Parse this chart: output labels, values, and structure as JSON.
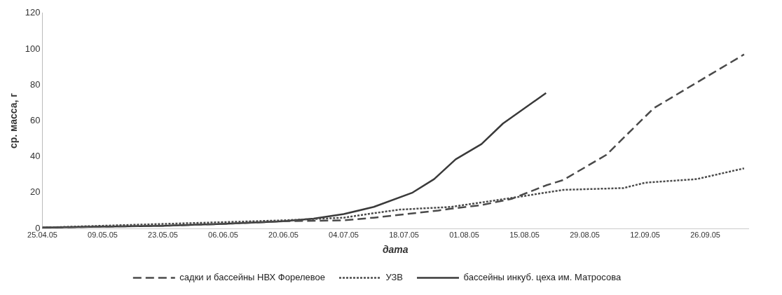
{
  "chart_data": {
    "type": "line",
    "xlabel": "дата",
    "ylabel": "ср. масса, г",
    "ylim": [
      0,
      120
    ],
    "yticks": [
      0,
      20,
      40,
      60,
      80,
      100,
      120
    ],
    "xlim": [
      "--04-25",
      "--10-06"
    ],
    "xticks": [
      {
        "value": "--04-25",
        "label": "25.04.05"
      },
      {
        "value": "--05-09",
        "label": "09.05.05"
      },
      {
        "value": "--05-23",
        "label": "23.05.05"
      },
      {
        "value": "--06-06",
        "label": "06.06.05"
      },
      {
        "value": "--06-20",
        "label": "20.06.05"
      },
      {
        "value": "--07-04",
        "label": "04.07.05"
      },
      {
        "value": "--07-18",
        "label": "18.07.05"
      },
      {
        "value": "--08-01",
        "label": "01.08.05"
      },
      {
        "value": "--08-15",
        "label": "15.08.05"
      },
      {
        "value": "--08-29",
        "label": "29.08.05"
      },
      {
        "value": "--09-12",
        "label": "12.09.05"
      },
      {
        "value": "--09-26",
        "label": "26.09.05"
      }
    ],
    "grid": false,
    "legend": "bottom",
    "marker": "none",
    "series": [
      {
        "name": "садки и бассейны НВХ Форелевое",
        "color": "#4a4a4a",
        "line_style": "dashed",
        "x": [
          "--04-25",
          "--05-09",
          "--05-23",
          "--06-06",
          "--06-20",
          "--07-04",
          "--07-11",
          "--07-26",
          "--07-29",
          "--08-05",
          "--08-12",
          "--08-20",
          "--08-24",
          "--09-03",
          "--09-14",
          "--10-05"
        ],
        "values": [
          0.5,
          1,
          1.5,
          2.5,
          4,
          4.5,
          6,
          10,
          11,
          13,
          16.5,
          24,
          27,
          41,
          67,
          97
        ]
      },
      {
        "name": "УЗВ",
        "color": "#4a4a4a",
        "line_style": "dotted",
        "x": [
          "--04-25",
          "--05-09",
          "--05-23",
          "--06-06",
          "--06-20",
          "--07-04",
          "--07-11",
          "--07-17",
          "--07-29",
          "--08-12",
          "--08-24",
          "--09-07",
          "--09-12",
          "--09-24",
          "--10-05"
        ],
        "values": [
          0.5,
          1.5,
          2.5,
          3.5,
          4.5,
          6,
          8.5,
          10.5,
          12,
          17,
          21.5,
          22.5,
          25.5,
          27.5,
          33.5
        ]
      },
      {
        "name": "бассейны инкуб. цеха им. Матросова",
        "color": "#3a3a3a",
        "line_style": "solid",
        "x": [
          "--04-25",
          "--05-09",
          "--05-23",
          "--06-06",
          "--06-20",
          "--06-27",
          "--07-04",
          "--07-11",
          "--07-20",
          "--07-25",
          "--07-30",
          "--08-05",
          "--08-10",
          "--08-20"
        ],
        "values": [
          0.5,
          1,
          1.5,
          2.5,
          4,
          5.5,
          8,
          12,
          20,
          27.5,
          38.5,
          47,
          58.5,
          75.5
        ]
      }
    ]
  }
}
